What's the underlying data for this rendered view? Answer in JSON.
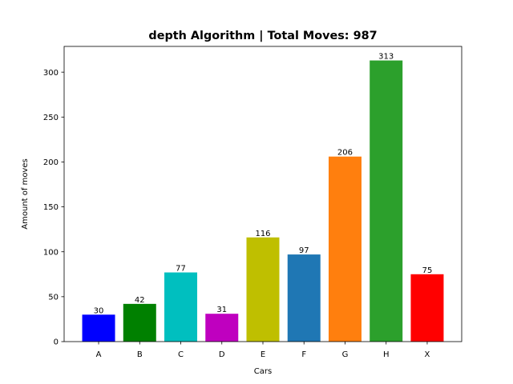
{
  "chart_data": {
    "type": "bar",
    "title": "depth Algorithm | Total Moves: 987",
    "xlabel": "Cars",
    "ylabel": "Amount of moves",
    "categories": [
      "A",
      "B",
      "C",
      "D",
      "E",
      "F",
      "G",
      "H",
      "X"
    ],
    "values": [
      30,
      42,
      77,
      31,
      116,
      97,
      206,
      313,
      75
    ],
    "colors": [
      "#0000ff",
      "#008000",
      "#00bfbf",
      "#bf00bf",
      "#bfbf00",
      "#1f77b4",
      "#ff7f0e",
      "#2ca02c",
      "#ff0000"
    ],
    "ylim": [
      0,
      328.65
    ],
    "yticks": [
      0,
      50,
      100,
      150,
      200,
      250,
      300
    ],
    "grid": false,
    "legend": "none"
  }
}
